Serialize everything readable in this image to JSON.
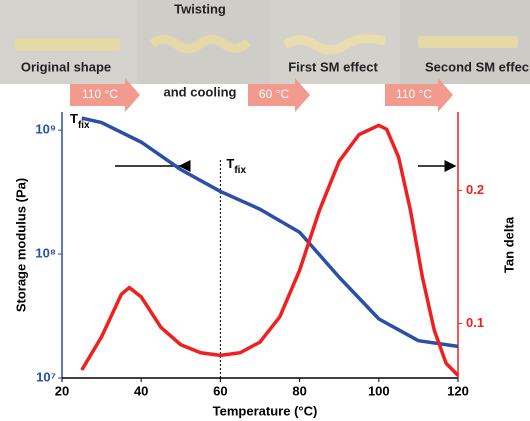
{
  "photos": {
    "labels": [
      "Original shape",
      "Twisting",
      "and cooling",
      "First SM effect",
      "Second SM effec"
    ],
    "steps": [
      "110 °C",
      "60 °C",
      "110 °C"
    ]
  },
  "chart_data": {
    "type": "line",
    "xlabel": "Temperature (°C)",
    "ylabel": "Storage modulus (Pa)",
    "y2label": "Tan delta",
    "annotations": [
      {
        "main": "T",
        "sub": "fix"
      },
      {
        "main": "T",
        "sub": "fix"
      }
    ],
    "xlim": [
      20,
      120
    ],
    "xticks": [
      20,
      40,
      60,
      80,
      100,
      120
    ],
    "ylim": [
      10000000,
      1400000000
    ],
    "yscale": "log",
    "yticks": [
      {
        "value": 10000000,
        "label": "10⁷"
      },
      {
        "value": 100000000,
        "label": "10⁸"
      },
      {
        "value": 1000000000,
        "label": "10⁹"
      }
    ],
    "y2lim": [
      0.059,
      0.259
    ],
    "y2ticks": [
      0.1,
      0.2
    ],
    "vline": 60,
    "series": [
      {
        "color": "#2a4fa8",
        "axis": "y",
        "x": [
          25,
          30,
          40,
          50,
          60,
          70,
          80,
          90,
          100,
          110,
          120
        ],
        "values": [
          1250000000,
          1150000000,
          800000000,
          480000000,
          320000000,
          230000000,
          150000000,
          65000000,
          30000000,
          20000000,
          18000000
        ]
      },
      {
        "color": "#f02020",
        "axis": "y2",
        "x": [
          25,
          30,
          35,
          37,
          40,
          45,
          50,
          55,
          60,
          65,
          70,
          75,
          80,
          85,
          90,
          95,
          100,
          102,
          105,
          108,
          111,
          114,
          117,
          120
        ],
        "values": [
          0.065,
          0.09,
          0.122,
          0.127,
          0.12,
          0.097,
          0.084,
          0.078,
          0.076,
          0.078,
          0.086,
          0.105,
          0.14,
          0.185,
          0.222,
          0.242,
          0.249,
          0.246,
          0.225,
          0.185,
          0.135,
          0.095,
          0.07,
          0.061
        ]
      }
    ]
  }
}
